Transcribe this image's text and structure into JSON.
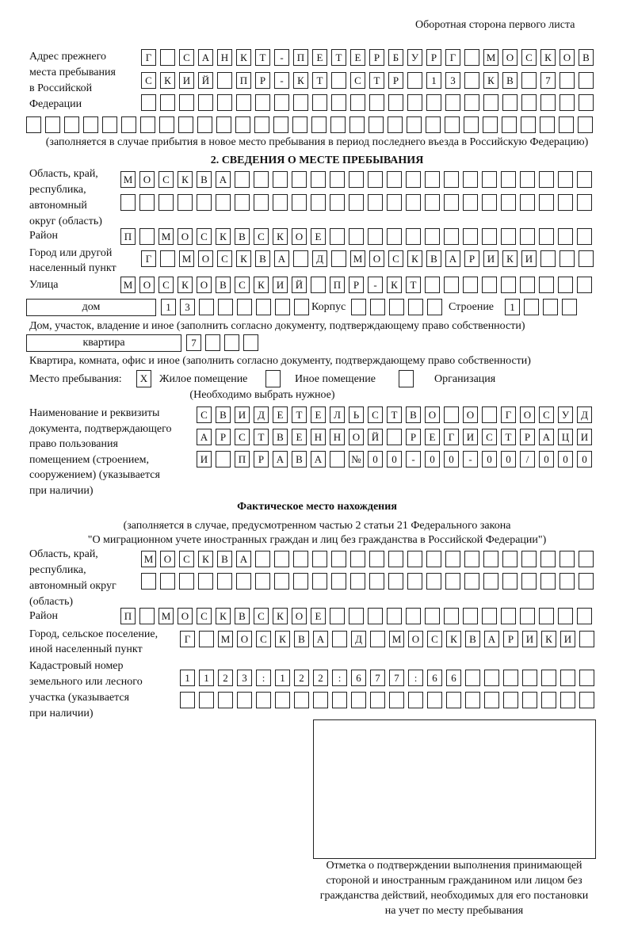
{
  "header": {
    "side_label": "Оборотная сторона первого листа"
  },
  "prev_address": {
    "label": [
      "Адрес прежнего",
      "места пребывания",
      "в Российской",
      "Федерации"
    ],
    "rows": [
      [
        "Г",
        "",
        "С",
        "А",
        "Н",
        "К",
        "Т",
        "-",
        "П",
        "Е",
        "Т",
        "Е",
        "Р",
        "Б",
        "У",
        "Р",
        "Г",
        "",
        "М",
        "О",
        "С",
        "К",
        "О",
        "В"
      ],
      [
        "С",
        "К",
        "И",
        "Й",
        "",
        "П",
        "Р",
        "-",
        "К",
        "Т",
        "",
        "С",
        "Т",
        "Р",
        "",
        "1",
        "3",
        "",
        "К",
        "В",
        "",
        "7",
        "",
        ""
      ],
      [
        "",
        "",
        "",
        "",
        "",
        "",
        "",
        "",
        "",
        "",
        "",
        "",
        "",
        "",
        "",
        "",
        "",
        "",
        "",
        "",
        "",
        "",
        "",
        ""
      ],
      [
        "",
        "",
        "",
        "",
        "",
        "",
        "",
        "",
        "",
        "",
        "",
        "",
        "",
        "",
        "",
        "",
        "",
        "",
        "",
        "",
        "",
        "",
        "",
        "",
        "",
        "",
        "",
        "",
        "",
        ""
      ]
    ],
    "note": "(заполняется в случае прибытия в новое место пребывания в период последнего въезда в Российскую Федерацию)"
  },
  "section2": {
    "title": "2. СВЕДЕНИЯ О МЕСТЕ ПРЕБЫВАНИЯ",
    "region_label": [
      "Область, край,",
      "республика,",
      "автономный",
      "округ (область)"
    ],
    "region_rows": [
      [
        "М",
        "О",
        "С",
        "К",
        "В",
        "А",
        "",
        "",
        "",
        "",
        "",
        "",
        "",
        "",
        "",
        "",
        "",
        "",
        "",
        "",
        "",
        "",
        "",
        "",
        ""
      ],
      [
        "",
        "",
        "",
        "",
        "",
        "",
        "",
        "",
        "",
        "",
        "",
        "",
        "",
        "",
        "",
        "",
        "",
        "",
        "",
        "",
        "",
        "",
        "",
        "",
        ""
      ]
    ],
    "district_label": "Район",
    "district_row": [
      "П",
      "",
      "М",
      "О",
      "С",
      "К",
      "В",
      "С",
      "К",
      "О",
      "Е",
      "",
      "",
      "",
      "",
      "",
      "",
      "",
      "",
      "",
      "",
      "",
      "",
      "",
      ""
    ],
    "city_label": [
      "Город или другой",
      "населенный пункт"
    ],
    "city_row": [
      "Г",
      "",
      "М",
      "О",
      "С",
      "К",
      "В",
      "А",
      "",
      "Д",
      "",
      "М",
      "О",
      "С",
      "К",
      "В",
      "А",
      "Р",
      "И",
      "К",
      "И",
      "",
      "",
      ""
    ],
    "street_label": "Улица",
    "street_row": [
      "М",
      "О",
      "С",
      "К",
      "О",
      "В",
      "С",
      "К",
      "И",
      "Й",
      "",
      "П",
      "Р",
      "-",
      "К",
      "Т",
      "",
      "",
      "",
      "",
      "",
      "",
      "",
      "",
      ""
    ],
    "house": {
      "type": "дом",
      "cells": [
        "1",
        "3",
        "",
        "",
        "",
        "",
        "",
        ""
      ],
      "korpus_label": "Корпус",
      "korpus_cells": [
        "",
        "",
        "",
        "",
        ""
      ],
      "building_label": "Строение",
      "building_cells": [
        "1",
        "",
        "",
        ""
      ]
    },
    "house_note": "Дом, участок, владение и иное (заполнить согласно документу, подтверждающему право собственности)",
    "apartment": {
      "type": "квартира",
      "cells": [
        "7",
        "",
        "",
        ""
      ]
    },
    "apartment_note": "Квартира, комната, офис и иное (заполнить согласно документу, подтверждающему право собственности)",
    "stay_place": {
      "label": "Место пребывания:",
      "options": [
        {
          "mark": "X",
          "label": "Жилое помещение"
        },
        {
          "mark": "",
          "label": "Иное помещение"
        },
        {
          "mark": "",
          "label": "Организация"
        }
      ],
      "hint": "(Необходимо выбрать нужное)"
    },
    "doc_label": [
      "Наименование и реквизиты",
      "документа, подтверждающего",
      "право пользования",
      "помещением (строением,",
      "сооружением) (указывается",
      "при наличии)"
    ],
    "doc_rows": [
      [
        "С",
        "В",
        "И",
        "Д",
        "Е",
        "Т",
        "Е",
        "Л",
        "Ь",
        "С",
        "Т",
        "В",
        "О",
        "",
        "О",
        "",
        "Г",
        "О",
        "С",
        "У",
        "Д"
      ],
      [
        "А",
        "Р",
        "С",
        "Т",
        "В",
        "Е",
        "Н",
        "Н",
        "О",
        "Й",
        "",
        "Р",
        "Е",
        "Г",
        "И",
        "С",
        "Т",
        "Р",
        "А",
        "Ц",
        "И"
      ],
      [
        "И",
        "",
        "П",
        "Р",
        "А",
        "В",
        "А",
        "",
        "№",
        "0",
        "0",
        "-",
        "0",
        "0",
        "-",
        "0",
        "0",
        "/",
        "0",
        "0",
        "0"
      ]
    ]
  },
  "actual": {
    "title": "Фактическое место нахождения",
    "note": [
      "(заполняется в случае, предусмотренном частью 2 статьи 21 Федерального закона",
      "\"О миграционном учете иностранных граждан и лиц без гражданства в Российской Федерации\")"
    ],
    "region_label": [
      "Область, край,",
      "республика,",
      "автономный округ",
      "(область)"
    ],
    "region_rows": [
      [
        "М",
        "О",
        "С",
        "К",
        "В",
        "А",
        "",
        "",
        "",
        "",
        "",
        "",
        "",
        "",
        "",
        "",
        "",
        "",
        "",
        "",
        "",
        "",
        "",
        ""
      ],
      [
        "",
        "",
        "",
        "",
        "",
        "",
        "",
        "",
        "",
        "",
        "",
        "",
        "",
        "",
        "",
        "",
        "",
        "",
        "",
        "",
        "",
        "",
        "",
        ""
      ]
    ],
    "district_label": "Район",
    "district_row": [
      "П",
      "",
      "М",
      "О",
      "С",
      "К",
      "В",
      "С",
      "К",
      "О",
      "Е",
      "",
      "",
      "",
      "",
      "",
      "",
      "",
      "",
      "",
      "",
      "",
      "",
      "",
      ""
    ],
    "city_label": [
      "Город, сельское поселение,",
      "иной населенный пункт"
    ],
    "city_row": [
      "Г",
      "",
      "М",
      "О",
      "С",
      "К",
      "В",
      "А",
      "",
      "Д",
      "",
      "М",
      "О",
      "С",
      "К",
      "В",
      "А",
      "Р",
      "И",
      "К",
      "И",
      ""
    ],
    "cadastre_label": [
      "Кадастровый номер",
      "земельного или лесного",
      "участка (указывается",
      "при наличии)"
    ],
    "cadastre_rows": [
      [
        "1",
        "1",
        "2",
        "3",
        ":",
        "1",
        "2",
        "2",
        ":",
        "6",
        "7",
        "7",
        ":",
        "6",
        "6",
        "",
        "",
        "",
        "",
        "",
        "",
        ""
      ],
      [
        "",
        "",
        "",
        "",
        "",
        "",
        "",
        "",
        "",
        "",
        "",
        "",
        "",
        "",
        "",
        "",
        "",
        "",
        "",
        "",
        "",
        ""
      ]
    ]
  },
  "confirmation": {
    "caption": [
      "Отметка о подтверждении выполнения принимающей",
      "стороной и иностранным гражданином или лицом без",
      "гражданства действий, необходимых для его постановки",
      "на учет по месту пребывания"
    ]
  }
}
